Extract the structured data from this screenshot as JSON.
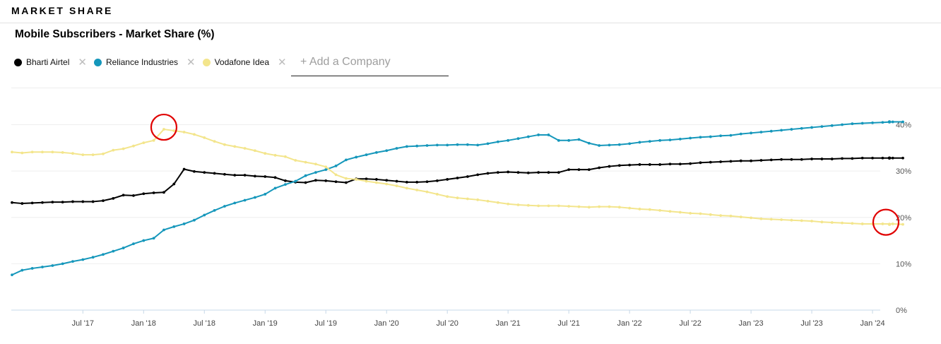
{
  "section_title": "MARKET SHARE",
  "chart_title": "Mobile Subscribers - Market Share (%)",
  "add_company_placeholder": "+ Add a Company",
  "legend": [
    {
      "label": "Bharti Airtel",
      "color": "#000000",
      "remove_icon": "close-icon"
    },
    {
      "label": "Reliance Industries",
      "color": "#1597bb",
      "remove_icon": "close-icon"
    },
    {
      "label": "Vodafone Idea",
      "color": "#f3e58c",
      "remove_icon": "close-icon"
    }
  ],
  "chart_data": {
    "type": "line",
    "title": "Mobile Subscribers - Market Share (%)",
    "xlabel": "",
    "ylabel": "",
    "ylim": [
      0,
      48
    ],
    "y_ticks": [
      0,
      10,
      20,
      30,
      40
    ],
    "y_tick_labels": [
      "0%",
      "10%",
      "20%",
      "30%",
      "40%"
    ],
    "y_axis_position": "right",
    "grid": true,
    "x_start": "2016-12",
    "x_end": "2024-08",
    "x_tick_labels": [
      "Jul '17",
      "Jan '18",
      "Jul '18",
      "Jan '19",
      "Jul '19",
      "Jan '20",
      "Jul '20",
      "Jan '21",
      "Jul '21",
      "Jan '22",
      "Jul '22",
      "Jan '23",
      "Jul '23",
      "Jan '24"
    ],
    "x_tick_dates": [
      "2017-07",
      "2018-01",
      "2018-07",
      "2019-01",
      "2019-07",
      "2020-01",
      "2020-07",
      "2021-01",
      "2021-07",
      "2022-01",
      "2022-07",
      "2023-01",
      "2023-07",
      "2024-01"
    ],
    "series": [
      {
        "name": "Bharti Airtel",
        "color": "#000000",
        "values": [
          23.2,
          23.0,
          23.1,
          23.2,
          23.3,
          23.3,
          23.4,
          23.4,
          23.4,
          23.6,
          24.1,
          24.8,
          24.7,
          25.1,
          25.3,
          25.4,
          27.2,
          30.4,
          29.9,
          29.7,
          29.5,
          29.3,
          29.1,
          29.1,
          28.9,
          28.8,
          28.6,
          27.9,
          27.6,
          27.5,
          28.0,
          27.9,
          27.7,
          27.5,
          28.3,
          28.3,
          28.2,
          28.0,
          27.8,
          27.6,
          27.6,
          27.7,
          27.9,
          28.2,
          28.5,
          28.8,
          29.2,
          29.5,
          29.7,
          29.8,
          29.7,
          29.6,
          29.7,
          29.7,
          29.7,
          30.3,
          30.3,
          30.3,
          30.7,
          31.0,
          31.2,
          31.3,
          31.4,
          31.4,
          31.4,
          31.5,
          31.5,
          31.6,
          31.8,
          31.9,
          32.0,
          32.1,
          32.2,
          32.2,
          32.3,
          32.4,
          32.5,
          32.5,
          32.5,
          32.6,
          32.6,
          32.6,
          32.7,
          32.7,
          32.8,
          32.8,
          32.8,
          32.8,
          32.8
        ],
        "last_value_marker": 32.8
      },
      {
        "name": "Reliance Industries",
        "color": "#1597bb",
        "values": [
          7.6,
          8.6,
          9.0,
          9.3,
          9.6,
          10.0,
          10.5,
          10.9,
          11.4,
          12.0,
          12.7,
          13.4,
          14.3,
          15.0,
          15.5,
          17.3,
          18.0,
          18.6,
          19.4,
          20.5,
          21.5,
          22.4,
          23.1,
          23.7,
          24.3,
          25.0,
          26.3,
          27.1,
          27.8,
          29.0,
          29.7,
          30.3,
          31.1,
          32.4,
          33.0,
          33.5,
          34.0,
          34.4,
          34.9,
          35.3,
          35.4,
          35.5,
          35.6,
          35.6,
          35.7,
          35.7,
          35.6,
          35.9,
          36.3,
          36.6,
          37.0,
          37.4,
          37.8,
          37.8,
          36.6,
          36.6,
          36.8,
          36.0,
          35.5,
          35.6,
          35.7,
          35.9,
          36.2,
          36.4,
          36.6,
          36.7,
          36.9,
          37.1,
          37.3,
          37.4,
          37.6,
          37.7,
          38.0,
          38.2,
          38.4,
          38.6,
          38.8,
          39.0,
          39.2,
          39.4,
          39.6,
          39.8,
          40.0,
          40.2,
          40.3,
          40.4,
          40.5,
          40.6,
          40.6
        ],
        "last_value_marker": 40.6
      },
      {
        "name": "Vodafone Idea",
        "color": "#f3e58c",
        "values": [
          34.1,
          33.9,
          34.1,
          34.1,
          34.1,
          34.0,
          33.8,
          33.5,
          33.5,
          33.7,
          34.5,
          34.8,
          35.4,
          36.1,
          36.6,
          39.0,
          38.7,
          38.4,
          37.9,
          37.2,
          36.4,
          35.7,
          35.3,
          34.9,
          34.4,
          33.8,
          33.4,
          33.1,
          32.3,
          31.9,
          31.5,
          30.9,
          29.2,
          28.4,
          28.2,
          27.8,
          27.5,
          27.2,
          26.8,
          26.3,
          25.9,
          25.5,
          25.0,
          24.5,
          24.2,
          24.0,
          23.8,
          23.5,
          23.2,
          22.9,
          22.7,
          22.6,
          22.5,
          22.5,
          22.5,
          22.4,
          22.3,
          22.2,
          22.3,
          22.3,
          22.2,
          22.0,
          21.8,
          21.7,
          21.5,
          21.3,
          21.1,
          20.9,
          20.8,
          20.6,
          20.4,
          20.3,
          20.1,
          19.9,
          19.7,
          19.6,
          19.5,
          19.4,
          19.3,
          19.2,
          19.0,
          18.9,
          18.8,
          18.7,
          18.6,
          18.6,
          18.6,
          18.6,
          18.5
        ],
        "last_value_marker": 18.5
      }
    ],
    "annotations": [
      {
        "type": "circle",
        "series": "Vodafone Idea",
        "point_index": 15,
        "color": "#e00000"
      },
      {
        "type": "circle",
        "series": "Vodafone Idea",
        "point_index": 88,
        "color": "#e00000"
      }
    ]
  }
}
